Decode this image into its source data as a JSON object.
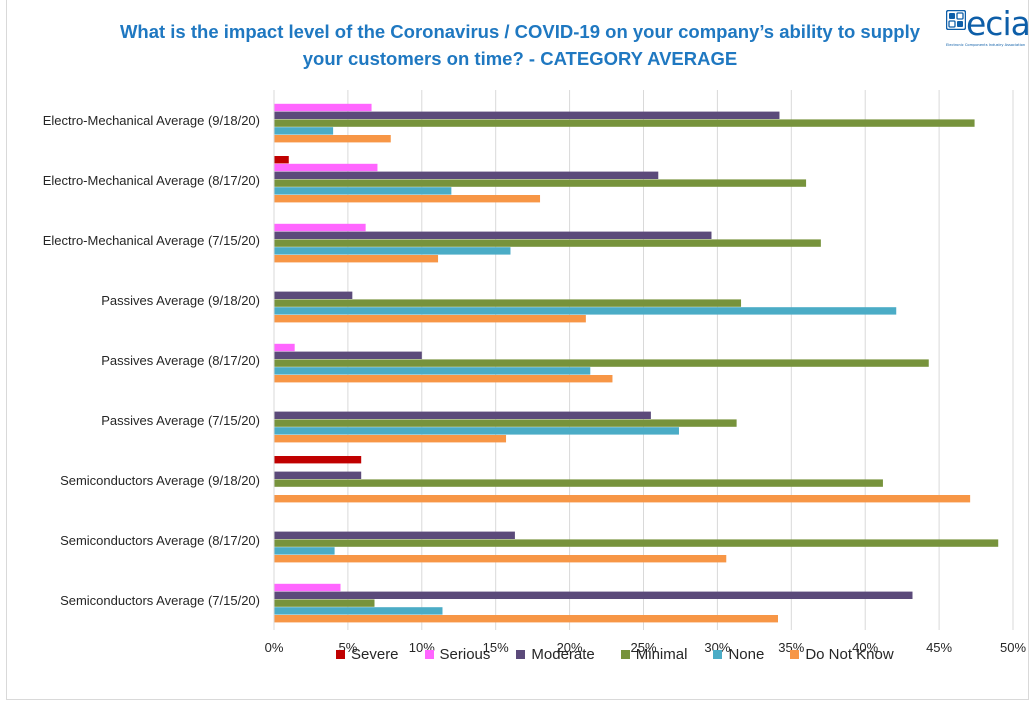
{
  "title": "What is the impact level of the Coronavirus / COVID-19 on your company’s ability to supply your customers on time? - CATEGORY AVERAGE",
  "logo": {
    "word": "ecia",
    "tagline": "Electronic Components Industry Association",
    "icon": "ecia-grid-logo-icon"
  },
  "chart_data": {
    "type": "bar",
    "orientation": "horizontal",
    "title": "What is the impact level of the Coronavirus / COVID-19 on your company’s ability to supply your customers on time? - CATEGORY AVERAGE",
    "xlabel": "",
    "ylabel": "",
    "xlim": [
      0,
      50
    ],
    "x_ticks": [
      "0%",
      "5%",
      "10%",
      "15%",
      "20%",
      "25%",
      "30%",
      "35%",
      "40%",
      "45%",
      "50%"
    ],
    "x_tick_values": [
      0,
      5,
      10,
      15,
      20,
      25,
      30,
      35,
      40,
      45,
      50
    ],
    "grid": true,
    "legend_position": "bottom",
    "categories": [
      "Electro-Mechanical Average (9/18/20)",
      "Electro-Mechanical Average (8/17/20)",
      "Electro-Mechanical Average (7/15/20)",
      "Passives Average (9/18/20)",
      "Passives Average (8/17/20)",
      "Passives Average (7/15/20)",
      "Semiconductors Average (9/18/20)",
      "Semiconductors Average (8/17/20)",
      "Semiconductors Average (7/15/20)"
    ],
    "series": [
      {
        "name": "Severe",
        "color": "#c00000",
        "values": [
          0,
          1.0,
          0,
          0,
          0,
          0,
          5.9,
          0,
          0
        ]
      },
      {
        "name": "Serious",
        "color": "#ff66ff",
        "values": [
          6.6,
          7.0,
          6.2,
          0,
          1.4,
          0,
          0,
          0,
          4.5
        ]
      },
      {
        "name": "Moderate",
        "color": "#5b4a7a",
        "values": [
          34.2,
          26.0,
          29.6,
          5.3,
          10.0,
          25.5,
          5.9,
          16.3,
          43.2
        ]
      },
      {
        "name": "Minimal",
        "color": "#77933c",
        "values": [
          47.4,
          36.0,
          37.0,
          31.6,
          44.3,
          31.3,
          41.2,
          49.0,
          6.8
        ]
      },
      {
        "name": "None",
        "color": "#4bacc6",
        "values": [
          4.0,
          12.0,
          16.0,
          42.1,
          21.4,
          27.4,
          0,
          4.1,
          11.4
        ]
      },
      {
        "name": "Do Not Know",
        "color": "#f79646",
        "values": [
          7.9,
          18.0,
          11.1,
          21.1,
          22.9,
          15.7,
          47.1,
          30.6,
          34.1
        ]
      }
    ]
  }
}
